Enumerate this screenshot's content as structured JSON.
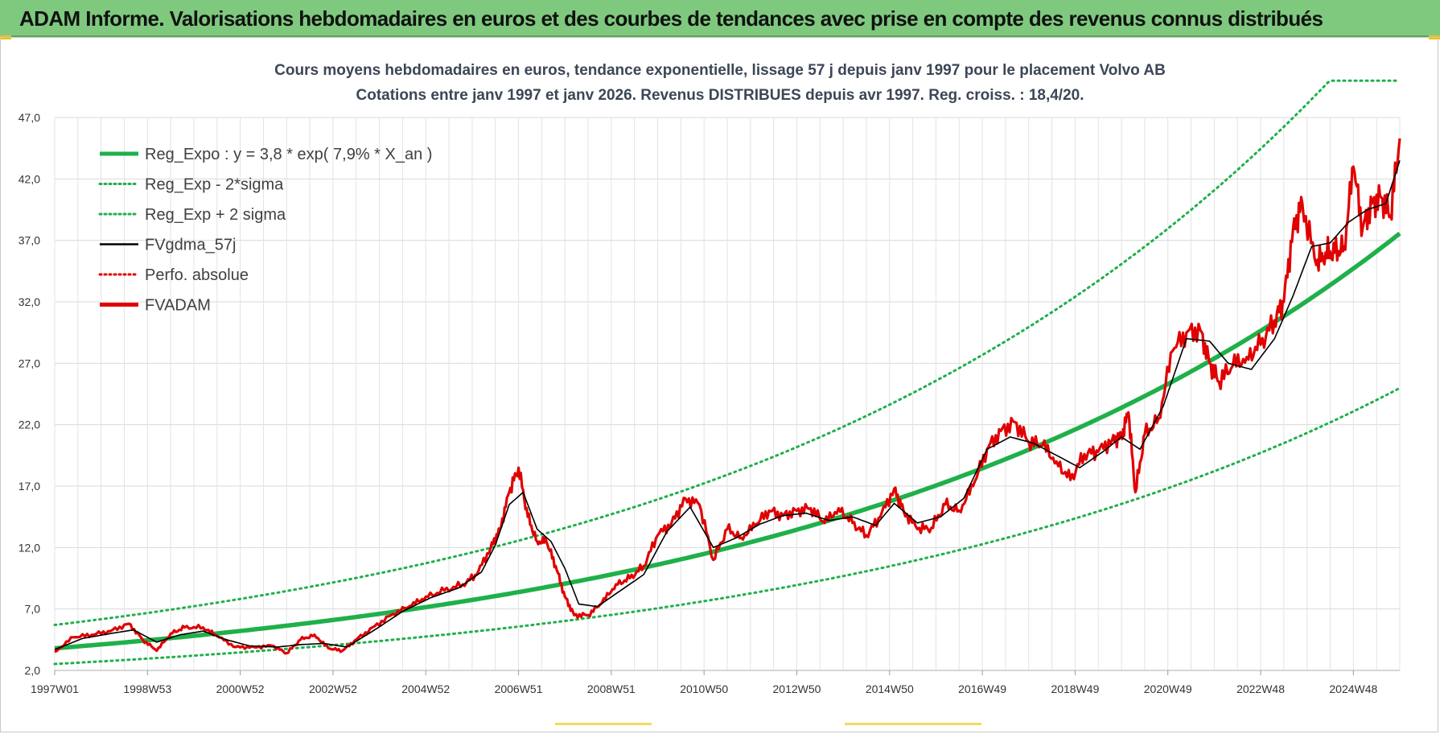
{
  "header": {
    "title": "ADAM Informe. Valorisations hebdomadaires en euros et des courbes de tendances avec prise en compte des revenus connus distribués"
  },
  "chart_data": {
    "type": "line",
    "title": "Cours moyens hebdomadaires en euros, tendance exponentielle, lissage 57 j depuis janv 1997  pour le placement Volvo AB",
    "subtitle": "Cotations entre janv 1997 et janv 2026. Revenus DISTRIBUES depuis avr 1997.  Reg. croiss. : 18,4/20.",
    "xlabel": "",
    "ylabel": "",
    "ylim": [
      2.0,
      47.0
    ],
    "xlim": [
      1997.0,
      2026.0
    ],
    "y_ticks": [
      "2,0",
      "7,0",
      "12,0",
      "17,0",
      "22,0",
      "27,0",
      "32,0",
      "37,0",
      "42,0",
      "47,0"
    ],
    "x_tick_labels": [
      "1997W01",
      "1998W53",
      "2000W52",
      "2002W52",
      "2004W52",
      "2006W51",
      "2008W51",
      "2010W50",
      "2012W50",
      "2014W50",
      "2016W49",
      "2018W49",
      "2020W49",
      "2022W48",
      "2024W48"
    ],
    "grid": true,
    "legend_position": "top-left",
    "legend": [
      {
        "label": "Reg_Expo : y = 3,8 * exp( 7,9% *  X_an )",
        "color": "#1fb04a",
        "style": "solid-thick"
      },
      {
        "label": "Reg_Exp - 2*sigma",
        "color": "#1fb04a",
        "style": "dotted"
      },
      {
        "label": "Reg_Exp + 2 sigma",
        "color": "#1fb04a",
        "style": "dotted"
      },
      {
        "label": "FVgdma_57j",
        "color": "#000000",
        "style": "solid-thin"
      },
      {
        "label": "Perfo. absolue",
        "color": "#e00000",
        "style": "dotted"
      },
      {
        "label": "FVADAM",
        "color": "#e00000",
        "style": "solid-thick"
      }
    ],
    "regression": {
      "a": 3.8,
      "rate": 0.079,
      "lower_factor": 0.665,
      "upper_factor": 1.5,
      "upper_cap": 50.0
    },
    "series": [
      {
        "name": "FVADAM",
        "x": [
          1997.0,
          1997.4,
          1997.8,
          1998.2,
          1998.6,
          1998.9,
          1999.2,
          1999.5,
          1999.8,
          2000.2,
          2000.5,
          2000.9,
          2001.3,
          2001.7,
          2002.0,
          2002.3,
          2002.6,
          2002.9,
          2003.2,
          2003.5,
          2003.9,
          2004.3,
          2004.7,
          2005.0,
          2005.4,
          2005.8,
          2006.1,
          2006.4,
          2006.6,
          2006.8,
          2007.0,
          2007.2,
          2007.4,
          2007.6,
          2007.8,
          2008.0,
          2008.2,
          2008.5,
          2008.8,
          2009.1,
          2009.4,
          2009.7,
          2010.0,
          2010.3,
          2010.6,
          2010.9,
          2011.2,
          2011.5,
          2011.8,
          2012.1,
          2012.4,
          2012.7,
          2013.0,
          2013.3,
          2013.6,
          2013.9,
          2014.2,
          2014.5,
          2014.8,
          2015.1,
          2015.3,
          2015.6,
          2015.9,
          2016.2,
          2016.5,
          2016.8,
          2017.1,
          2017.4,
          2017.7,
          2018.0,
          2018.3,
          2018.6,
          2018.9,
          2019.2,
          2019.5,
          2019.8,
          2020.0,
          2020.15,
          2020.3,
          2020.5,
          2020.8,
          2021.1,
          2021.4,
          2021.7,
          2021.9,
          2022.1,
          2022.4,
          2022.7,
          2023.0,
          2023.3,
          2023.5,
          2023.7,
          2023.9,
          2024.2,
          2024.4,
          2024.6,
          2024.8,
          2025.0,
          2025.2,
          2025.4,
          2025.6,
          2025.8,
          2026.0
        ],
        "values": [
          3.5,
          4.7,
          4.9,
          5.2,
          5.8,
          4.5,
          3.6,
          5.0,
          5.5,
          5.5,
          4.8,
          3.9,
          3.9,
          4.0,
          3.4,
          4.5,
          4.9,
          3.8,
          3.6,
          4.5,
          5.6,
          6.6,
          7.3,
          8.0,
          8.5,
          9.0,
          9.8,
          12.0,
          13.5,
          16.5,
          18.5,
          14.5,
          12.5,
          12.5,
          10.5,
          8.0,
          6.5,
          6.5,
          7.5,
          9.0,
          9.5,
          10.5,
          13.0,
          14.0,
          16.0,
          15.5,
          11.0,
          13.5,
          12.8,
          13.8,
          15.0,
          14.6,
          15.0,
          15.2,
          14.0,
          15.2,
          14.0,
          13.0,
          14.5,
          16.8,
          15.0,
          13.5,
          13.6,
          15.5,
          15.0,
          17.0,
          20.0,
          21.5,
          22.2,
          20.6,
          20.3,
          19.0,
          17.5,
          19.6,
          19.8,
          20.8,
          21.0,
          23.0,
          16.5,
          21.2,
          22.5,
          28.0,
          29.5,
          29.7,
          27.0,
          25.5,
          26.8,
          27.5,
          28.5,
          30.5,
          32.0,
          38.0,
          40.0,
          35.0,
          36.0,
          36.0,
          36.5,
          43.0,
          38.0,
          40.0,
          40.5,
          39.0,
          45.3
        ]
      },
      {
        "name": "FVgdma_57j",
        "x": [
          1997.0,
          1997.6,
          1998.2,
          1998.7,
          1999.2,
          1999.7,
          2000.2,
          2000.7,
          2001.2,
          2001.8,
          2002.3,
          2002.8,
          2003.3,
          2003.9,
          2004.5,
          2005.1,
          2005.7,
          2006.2,
          2006.5,
          2006.8,
          2007.1,
          2007.4,
          2007.7,
          2008.0,
          2008.3,
          2008.7,
          2009.2,
          2009.7,
          2010.2,
          2010.7,
          2011.2,
          2011.7,
          2012.2,
          2012.7,
          2013.2,
          2013.7,
          2014.2,
          2014.7,
          2015.1,
          2015.6,
          2016.1,
          2016.6,
          2017.1,
          2017.6,
          2018.1,
          2018.6,
          2019.1,
          2019.6,
          2020.0,
          2020.4,
          2020.9,
          2021.4,
          2021.9,
          2022.3,
          2022.8,
          2023.3,
          2023.7,
          2024.1,
          2024.5,
          2024.9,
          2025.3,
          2025.7,
          2026.0
        ],
        "values": [
          3.7,
          4.6,
          5.0,
          5.3,
          4.3,
          4.9,
          5.2,
          4.5,
          4.0,
          3.9,
          4.1,
          4.2,
          3.9,
          5.3,
          6.8,
          7.9,
          8.7,
          10.0,
          12.2,
          15.5,
          16.5,
          13.5,
          12.5,
          10.3,
          7.4,
          7.2,
          8.5,
          9.8,
          13.3,
          15.3,
          12.0,
          12.8,
          13.9,
          14.6,
          14.8,
          14.2,
          14.5,
          13.8,
          15.6,
          14.0,
          14.5,
          16.0,
          20.0,
          21.0,
          20.5,
          19.5,
          18.5,
          19.8,
          21.0,
          20.0,
          23.5,
          29.0,
          28.8,
          27.0,
          26.5,
          29.0,
          32.5,
          36.5,
          36.8,
          38.5,
          39.5,
          40.0,
          43.5
        ]
      }
    ]
  }
}
